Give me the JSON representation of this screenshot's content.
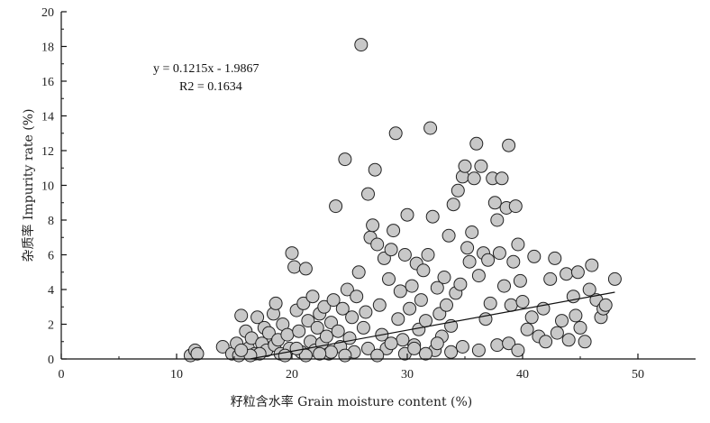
{
  "chart_data": {
    "type": "scatter",
    "title": "",
    "xlabel": "籽粒含水率 Grain moisture content (%)",
    "ylabel": "杂质率 Impurity rate (%)",
    "xlim": [
      0,
      55
    ],
    "ylim": [
      0,
      20
    ],
    "x_ticks": [
      0,
      10,
      20,
      30,
      40,
      50
    ],
    "y_ticks": [
      0,
      2,
      4,
      6,
      8,
      10,
      12,
      14,
      16,
      18,
      20
    ],
    "grid": false,
    "marker_fill": "#c8c8c8",
    "marker_edge": "#222222",
    "regression": {
      "equation": "y = 0.1215x - 1.9867",
      "r2_text": "R2 = 0.1634",
      "slope": 0.1215,
      "intercept": -1.9867,
      "x_range": [
        16.4,
        48
      ]
    },
    "points": [
      [
        11.2,
        0.2
      ],
      [
        11.6,
        0.5
      ],
      [
        11.8,
        0.3
      ],
      [
        14,
        0.7
      ],
      [
        14.8,
        0.3
      ],
      [
        15.2,
        0.9
      ],
      [
        15.4,
        0.2
      ],
      [
        15.6,
        2.5
      ],
      [
        16.0,
        1.6
      ],
      [
        16.2,
        0.6
      ],
      [
        16.5,
        1.2
      ],
      [
        16.8,
        0.3
      ],
      [
        17.0,
        2.4
      ],
      [
        17.4,
        0.9
      ],
      [
        17.6,
        1.8
      ],
      [
        17.8,
        0.5
      ],
      [
        18.0,
        1.5
      ],
      [
        18.4,
        2.6
      ],
      [
        18.5,
        0.8
      ],
      [
        18.6,
        3.2
      ],
      [
        18.8,
        1.1
      ],
      [
        19.0,
        0.3
      ],
      [
        19.2,
        2.0
      ],
      [
        19.6,
        1.4
      ],
      [
        19.8,
        0.6
      ],
      [
        20.0,
        6.1
      ],
      [
        20.2,
        5.3
      ],
      [
        20.4,
        2.8
      ],
      [
        20.6,
        1.6
      ],
      [
        20.8,
        0.4
      ],
      [
        21.0,
        3.2
      ],
      [
        21.2,
        5.2
      ],
      [
        21.4,
        2.2
      ],
      [
        21.6,
        1.0
      ],
      [
        21.8,
        3.6
      ],
      [
        22.0,
        0.5
      ],
      [
        22.2,
        1.8
      ],
      [
        22.4,
        2.6
      ],
      [
        22.6,
        0.9
      ],
      [
        22.8,
        3.0
      ],
      [
        23.0,
        1.3
      ],
      [
        23.2,
        0.3
      ],
      [
        23.4,
        2.1
      ],
      [
        23.6,
        3.4
      ],
      [
        23.8,
        8.8
      ],
      [
        24.0,
        1.6
      ],
      [
        24.2,
        0.7
      ],
      [
        24.4,
        2.9
      ],
      [
        24.6,
        11.5
      ],
      [
        24.8,
        4.0
      ],
      [
        25.0,
        1.2
      ],
      [
        25.2,
        2.4
      ],
      [
        25.4,
        0.4
      ],
      [
        25.6,
        3.6
      ],
      [
        25.8,
        5.0
      ],
      [
        26.0,
        18.1
      ],
      [
        26.2,
        1.8
      ],
      [
        26.4,
        2.7
      ],
      [
        26.6,
        9.5
      ],
      [
        26.8,
        7.0
      ],
      [
        27.0,
        7.7
      ],
      [
        27.2,
        10.9
      ],
      [
        27.4,
        6.6
      ],
      [
        27.6,
        3.1
      ],
      [
        27.8,
        1.4
      ],
      [
        28.0,
        5.8
      ],
      [
        28.2,
        0.6
      ],
      [
        28.4,
        4.6
      ],
      [
        28.6,
        6.3
      ],
      [
        28.8,
        7.4
      ],
      [
        29.0,
        13.0
      ],
      [
        29.2,
        2.3
      ],
      [
        29.4,
        3.9
      ],
      [
        29.6,
        1.1
      ],
      [
        29.8,
        6.0
      ],
      [
        30.0,
        8.3
      ],
      [
        30.2,
        2.9
      ],
      [
        30.4,
        4.2
      ],
      [
        30.6,
        0.8
      ],
      [
        30.8,
        5.5
      ],
      [
        31.0,
        1.7
      ],
      [
        31.2,
        3.4
      ],
      [
        31.4,
        5.1
      ],
      [
        31.6,
        2.2
      ],
      [
        31.8,
        6.0
      ],
      [
        32.0,
        13.3
      ],
      [
        32.2,
        8.2
      ],
      [
        32.4,
        0.5
      ],
      [
        32.6,
        4.1
      ],
      [
        32.8,
        2.6
      ],
      [
        33.0,
        1.3
      ],
      [
        33.2,
        4.7
      ],
      [
        33.4,
        3.1
      ],
      [
        33.6,
        7.1
      ],
      [
        33.8,
        1.9
      ],
      [
        34.0,
        8.9
      ],
      [
        34.2,
        3.8
      ],
      [
        34.4,
        9.7
      ],
      [
        34.6,
        4.3
      ],
      [
        34.8,
        10.5
      ],
      [
        35.0,
        11.1
      ],
      [
        35.2,
        6.4
      ],
      [
        35.4,
        5.6
      ],
      [
        35.6,
        7.3
      ],
      [
        35.8,
        10.4
      ],
      [
        36.0,
        12.4
      ],
      [
        36.2,
        4.8
      ],
      [
        36.4,
        11.1
      ],
      [
        36.6,
        6.1
      ],
      [
        36.8,
        2.3
      ],
      [
        37.0,
        5.7
      ],
      [
        37.2,
        3.2
      ],
      [
        37.4,
        10.4
      ],
      [
        37.6,
        9.0
      ],
      [
        37.8,
        8.0
      ],
      [
        38.0,
        6.1
      ],
      [
        38.2,
        10.4
      ],
      [
        38.4,
        4.2
      ],
      [
        38.6,
        8.7
      ],
      [
        38.8,
        12.3
      ],
      [
        39.0,
        3.1
      ],
      [
        39.2,
        5.6
      ],
      [
        39.4,
        8.8
      ],
      [
        39.6,
        6.6
      ],
      [
        39.8,
        4.5
      ],
      [
        40.0,
        3.3
      ],
      [
        40.4,
        1.7
      ],
      [
        40.8,
        2.4
      ],
      [
        41.0,
        5.9
      ],
      [
        41.4,
        1.3
      ],
      [
        41.8,
        2.9
      ],
      [
        42.0,
        1.0
      ],
      [
        42.4,
        4.6
      ],
      [
        42.8,
        5.8
      ],
      [
        43.0,
        1.5
      ],
      [
        43.4,
        2.2
      ],
      [
        43.8,
        4.9
      ],
      [
        44.0,
        1.1
      ],
      [
        44.4,
        3.6
      ],
      [
        44.6,
        2.5
      ],
      [
        44.8,
        5.0
      ],
      [
        45.0,
        1.8
      ],
      [
        45.4,
        1.0
      ],
      [
        45.8,
        4.0
      ],
      [
        46.0,
        5.4
      ],
      [
        46.4,
        3.4
      ],
      [
        46.8,
        2.4
      ],
      [
        47.0,
        2.9
      ],
      [
        47.2,
        3.1
      ],
      [
        48.0,
        4.6
      ],
      [
        23.4,
        0.4
      ],
      [
        24.6,
        0.2
      ],
      [
        26.6,
        0.6
      ],
      [
        27.4,
        0.2
      ],
      [
        28.6,
        0.9
      ],
      [
        29.8,
        0.3
      ],
      [
        30.6,
        0.6
      ],
      [
        31.6,
        0.3
      ],
      [
        32.6,
        0.9
      ],
      [
        33.8,
        0.4
      ],
      [
        34.8,
        0.7
      ],
      [
        36.2,
        0.5
      ],
      [
        37.8,
        0.8
      ],
      [
        38.8,
        0.9
      ],
      [
        39.6,
        0.5
      ],
      [
        22.4,
        0.3
      ],
      [
        21.2,
        0.2
      ],
      [
        20.4,
        0.6
      ],
      [
        19.4,
        0.2
      ],
      [
        17.2,
        0.3
      ],
      [
        16.4,
        0.2
      ],
      [
        15.6,
        0.5
      ]
    ]
  }
}
